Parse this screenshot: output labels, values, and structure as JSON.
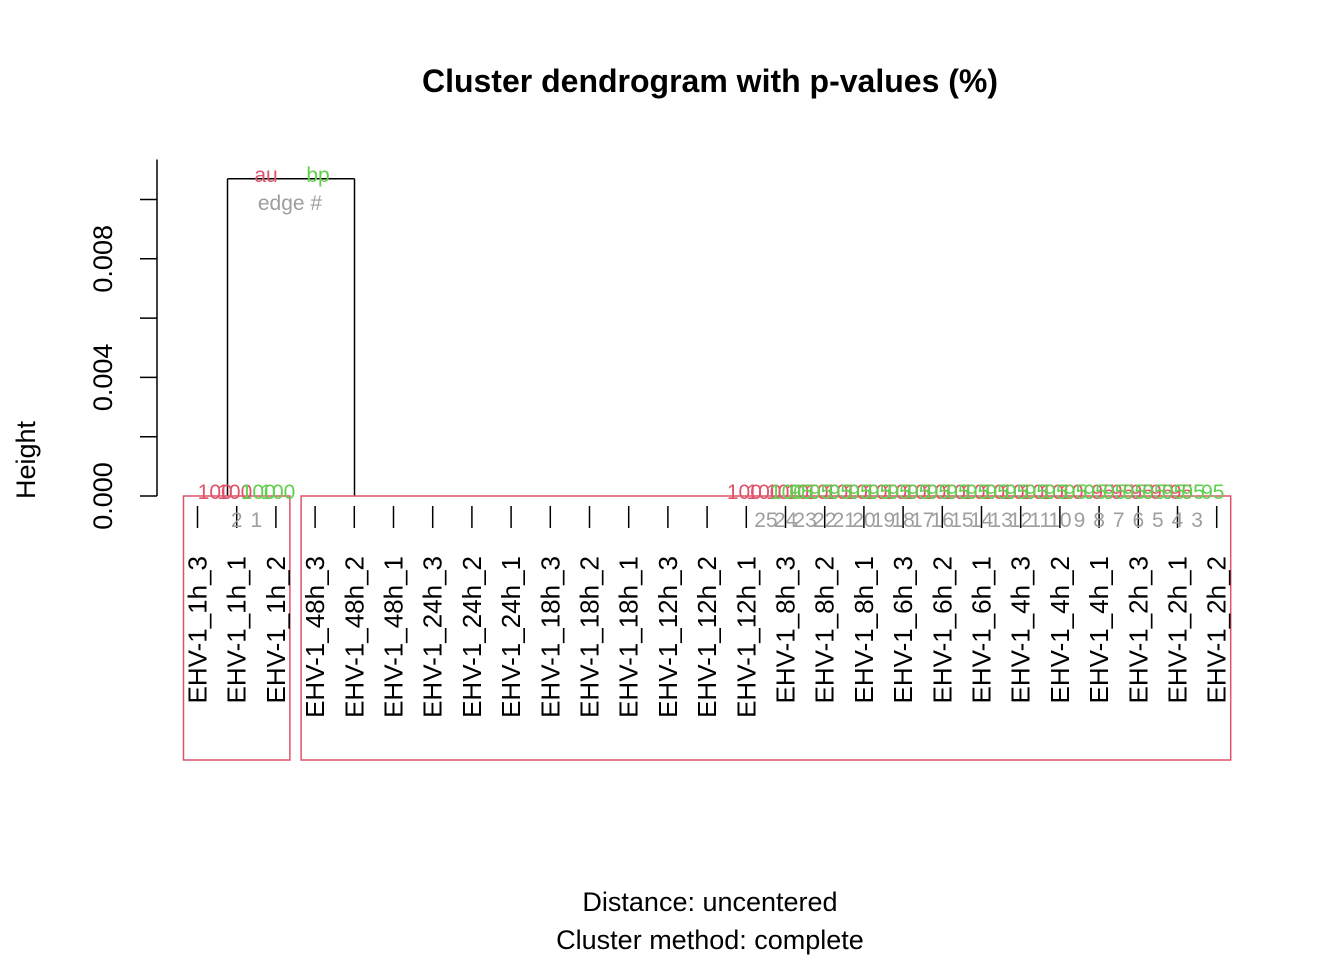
{
  "chart_data": {
    "type": "dendrogram",
    "title": "Cluster dendrogram with p-values (%)",
    "ylabel": "Height",
    "xlabel_lines": [
      "Distance:  uncentered",
      "Cluster method: complete"
    ],
    "ylim": [
      0,
      0.0107
    ],
    "yticks": [
      0,
      0.002,
      0.004,
      0.006,
      0.008,
      0.01
    ],
    "ytick_labels": [
      "0.000",
      "",
      "0.004",
      "",
      "0.008",
      ""
    ],
    "legend": {
      "au": "au",
      "bp": "bp",
      "edge": "edge #"
    },
    "colors": {
      "au": "#DF536B",
      "bp": "#61D04F",
      "edge": "#9E9E9E",
      "line": "#000000",
      "box": "#DF536B"
    },
    "leaves": [
      "EHV-1_1h_3",
      "EHV-1_1h_1",
      "EHV-1_1h_2",
      "EHV-1_48h_3",
      "EHV-1_48h_2",
      "EHV-1_48h_1",
      "EHV-1_24h_3",
      "EHV-1_24h_2",
      "EHV-1_24h_1",
      "EHV-1_18h_3",
      "EHV-1_18h_2",
      "EHV-1_18h_1",
      "EHV-1_12h_3",
      "EHV-1_12h_2",
      "EHV-1_12h_1",
      "EHV-1_8h_3",
      "EHV-1_8h_2",
      "EHV-1_8h_1",
      "EHV-1_6h_3",
      "EHV-1_6h_2",
      "EHV-1_6h_1",
      "EHV-1_4h_3",
      "EHV-1_4h_2",
      "EHV-1_4h_1",
      "EHV-1_2h_3",
      "EHV-1_2h_1",
      "EHV-1_2h_2"
    ],
    "merges": [
      {
        "edge": "1",
        "height": 0,
        "au": "100",
        "bp": "100",
        "members": [
          1,
          2
        ]
      },
      {
        "edge": "2",
        "height": 0,
        "au": "100",
        "bp": "100",
        "members": [
          0,
          1,
          2
        ]
      },
      {
        "edge": "3",
        "height": 0,
        "au": "95",
        "bp": "95",
        "members": [
          25,
          26
        ]
      },
      {
        "edge": "4",
        "height": 0,
        "au": "95",
        "bp": "95",
        "members": [
          24,
          25,
          26
        ]
      },
      {
        "edge": "5",
        "height": 0,
        "au": "95",
        "bp": "95",
        "members": [
          23,
          24,
          25,
          26
        ]
      },
      {
        "edge": "6",
        "height": 0,
        "au": "95",
        "bp": "95",
        "members": [
          22,
          23,
          24,
          25,
          26
        ]
      },
      {
        "edge": "7",
        "height": 0,
        "au": "95",
        "bp": "95",
        "members": [
          21,
          22,
          23,
          24,
          25,
          26
        ]
      },
      {
        "edge": "8",
        "height": 0,
        "au": "100",
        "bp": "95",
        "members": [
          20,
          21,
          22,
          23,
          24,
          25,
          26
        ]
      },
      {
        "edge": "9",
        "height": 0,
        "au": "100",
        "bp": "95",
        "members": [
          19,
          20,
          21,
          22,
          23,
          24,
          25,
          26
        ]
      },
      {
        "edge": "10",
        "height": 0,
        "au": "100",
        "bp": "95",
        "members": [
          18,
          19,
          20,
          21,
          22,
          23,
          24,
          25,
          26
        ]
      },
      {
        "edge": "11",
        "height": 0,
        "au": "100",
        "bp": "95",
        "members": [
          17,
          18,
          19,
          20,
          21,
          22,
          23,
          24,
          25,
          26
        ]
      },
      {
        "edge": "12",
        "height": 0,
        "au": "100",
        "bp": "95",
        "members": [
          16,
          17,
          18,
          19,
          20,
          21,
          22,
          23,
          24,
          25,
          26
        ]
      },
      {
        "edge": "13",
        "height": 0,
        "au": "100",
        "bp": "95",
        "members": [
          15,
          16,
          17,
          18,
          19,
          20,
          21,
          22,
          23,
          24,
          25,
          26
        ]
      },
      {
        "edge": "14",
        "height": 0,
        "au": "100",
        "bp": "95",
        "members": [
          14,
          15,
          16,
          17,
          18,
          19,
          20,
          21,
          22,
          23,
          24,
          25,
          26
        ]
      },
      {
        "edge": "15",
        "height": 0,
        "au": "100",
        "bp": "95",
        "members": [
          13,
          14,
          15,
          16,
          17,
          18,
          19,
          20,
          21,
          22,
          23,
          24,
          25,
          26
        ]
      },
      {
        "edge": "16",
        "height": 0,
        "au": "100",
        "bp": "95",
        "members": [
          12,
          13,
          14,
          15,
          16,
          17,
          18,
          19,
          20,
          21,
          22,
          23,
          24,
          25,
          26
        ]
      },
      {
        "edge": "17",
        "height": 0,
        "au": "100",
        "bp": "95",
        "members": [
          11,
          12,
          13,
          14,
          15,
          16,
          17,
          18,
          19,
          20,
          21,
          22,
          23,
          24,
          25,
          26
        ]
      },
      {
        "edge": "18",
        "height": 0,
        "au": "100",
        "bp": "95",
        "members": [
          10,
          11,
          12,
          13,
          14,
          15,
          16,
          17,
          18,
          19,
          20,
          21,
          22,
          23,
          24,
          25,
          26
        ]
      },
      {
        "edge": "19",
        "height": 0,
        "au": "100",
        "bp": "95",
        "members": [
          9,
          10,
          11,
          12,
          13,
          14,
          15,
          16,
          17,
          18,
          19,
          20,
          21,
          22,
          23,
          24,
          25,
          26
        ]
      },
      {
        "edge": "20",
        "height": 0,
        "au": "100",
        "bp": "95",
        "members": [
          8,
          9,
          10,
          11,
          12,
          13,
          14,
          15,
          16,
          17,
          18,
          19,
          20,
          21,
          22,
          23,
          24,
          25,
          26
        ]
      },
      {
        "edge": "21",
        "height": 0,
        "au": "100",
        "bp": "95",
        "members": [
          7,
          8,
          9,
          10,
          11,
          12,
          13,
          14,
          15,
          16,
          17,
          18,
          19,
          20,
          21,
          22,
          23,
          24,
          25,
          26
        ]
      },
      {
        "edge": "22",
        "height": 0,
        "au": "100",
        "bp": "95",
        "members": [
          6,
          7,
          8,
          9,
          10,
          11,
          12,
          13,
          14,
          15,
          16,
          17,
          18,
          19,
          20,
          21,
          22,
          23,
          24,
          25,
          26
        ]
      },
      {
        "edge": "23",
        "height": 0,
        "au": "100",
        "bp": "95",
        "members": [
          5,
          6,
          7,
          8,
          9,
          10,
          11,
          12,
          13,
          14,
          15,
          16,
          17,
          18,
          19,
          20,
          21,
          22,
          23,
          24,
          25,
          26
        ]
      },
      {
        "edge": "24",
        "height": 0,
        "au": "100",
        "bp": "95",
        "members": [
          4,
          5,
          6,
          7,
          8,
          9,
          10,
          11,
          12,
          13,
          14,
          15,
          16,
          17,
          18,
          19,
          20,
          21,
          22,
          23,
          24,
          25,
          26
        ]
      },
      {
        "edge": "25",
        "height": 0,
        "au": "100",
        "bp": "100",
        "members": [
          3,
          4,
          5,
          6,
          7,
          8,
          9,
          10,
          11,
          12,
          13,
          14,
          15,
          16,
          17,
          18,
          19,
          20,
          21,
          22,
          23,
          24,
          25,
          26
        ]
      },
      {
        "edge": "",
        "height": 0.0107,
        "au": "",
        "bp": "",
        "members": [
          0,
          1,
          2,
          3,
          4,
          5,
          6,
          7,
          8,
          9,
          10,
          11,
          12,
          13,
          14,
          15,
          16,
          17,
          18,
          19,
          20,
          21,
          22,
          23,
          24,
          25,
          26
        ]
      }
    ],
    "highlight_boxes": [
      {
        "from": 0,
        "to": 2
      },
      {
        "from": 3,
        "to": 26
      }
    ]
  }
}
